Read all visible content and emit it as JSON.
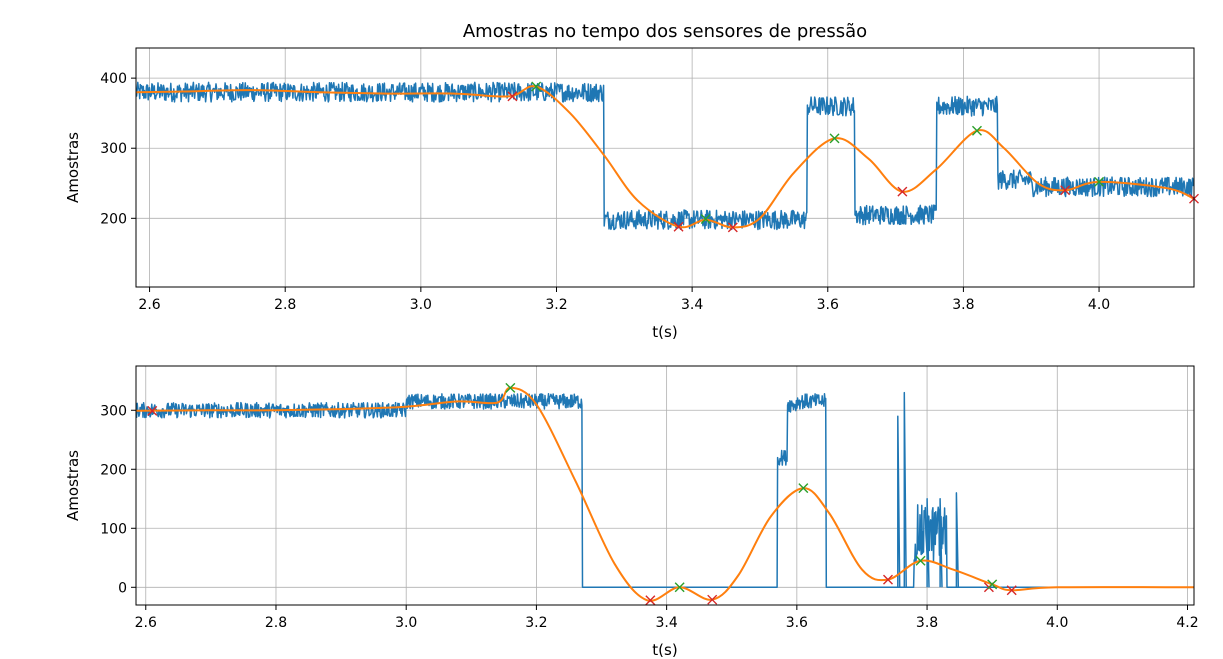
{
  "figure_title": "Amostras no tempo dos sensores de pressão",
  "colors": {
    "raw": "#1f77b4",
    "smooth": "#ff7f0e",
    "max": "#2ca02c",
    "min": "#d62728",
    "grid": "#b0b0b0"
  },
  "chart_data": [
    {
      "type": "line",
      "title": "Amostras no tempo dos sensores de pressão",
      "xlabel": "t(s)",
      "ylabel": "Amostras",
      "xlim": [
        2.58,
        4.14
      ],
      "ylim": [
        102,
        443
      ],
      "xticks": [
        2.6,
        2.8,
        3.0,
        3.2,
        3.4,
        3.6,
        3.8,
        4.0
      ],
      "xtick_labels": [
        "2.6",
        "2.8",
        "3.0",
        "3.2",
        "3.4",
        "3.6",
        "3.8",
        "4.0"
      ],
      "yticks": [
        200,
        300,
        400
      ],
      "ytick_labels": [
        "200",
        "300",
        "400"
      ],
      "grid": true,
      "raw_levels": [
        {
          "x": [
            2.58,
            3.27
          ],
          "y": 380
        },
        {
          "x": [
            3.27,
            3.57
          ],
          "y": 198
        },
        {
          "x": [
            3.57,
            3.64
          ],
          "y": 360
        },
        {
          "x": [
            3.64,
            3.76
          ],
          "y": 205
        },
        {
          "x": [
            3.76,
            3.85
          ],
          "y": 360
        },
        {
          "x": [
            3.85,
            3.9
          ],
          "y": 255
        },
        {
          "x": [
            3.9,
            4.14
          ],
          "y": 245
        }
      ],
      "raw_noise": 14,
      "smoothed": {
        "x": [
          2.58,
          2.65,
          2.75,
          2.85,
          2.95,
          3.05,
          3.13,
          3.17,
          3.22,
          3.27,
          3.32,
          3.38,
          3.42,
          3.46,
          3.5,
          3.55,
          3.61,
          3.66,
          3.71,
          3.76,
          3.82,
          3.86,
          3.91,
          3.95,
          4.0,
          4.1,
          4.14
        ],
        "y": [
          380,
          381,
          383,
          380,
          378,
          378,
          374,
          388,
          350,
          290,
          225,
          188,
          198,
          187,
          200,
          265,
          314,
          285,
          238,
          270,
          325,
          300,
          250,
          240,
          252,
          243,
          228
        ]
      },
      "maxima": [
        [
          3.17,
          388
        ],
        [
          3.42,
          199
        ],
        [
          3.61,
          314
        ],
        [
          3.82,
          325
        ],
        [
          4.0,
          252
        ]
      ],
      "minima": [
        [
          3.135,
          374
        ],
        [
          3.38,
          188
        ],
        [
          3.46,
          187
        ],
        [
          3.71,
          238
        ],
        [
          3.95,
          240
        ],
        [
          4.14,
          228
        ]
      ]
    },
    {
      "type": "line",
      "title": "",
      "xlabel": "t(s)",
      "ylabel": "Amostras",
      "xlim": [
        2.585,
        4.21
      ],
      "ylim": [
        -30,
        375
      ],
      "xticks": [
        2.6,
        2.8,
        3.0,
        3.2,
        3.4,
        3.6,
        3.8,
        4.0,
        4.2
      ],
      "xtick_labels": [
        "2.6",
        "2.8",
        "3.0",
        "3.2",
        "3.4",
        "3.6",
        "3.8",
        "4.0",
        "4.2"
      ],
      "yticks": [
        0,
        100,
        200,
        300
      ],
      "ytick_labels": [
        "0",
        "100",
        "200",
        "300"
      ],
      "grid": true,
      "raw_levels": [
        {
          "x": [
            2.585,
            3.0
          ],
          "y": 300
        },
        {
          "x": [
            3.0,
            3.27
          ],
          "y": 315
        },
        {
          "x": [
            3.27,
            3.57
          ],
          "y": 0
        },
        {
          "x": [
            3.57,
            3.585
          ],
          "y": 220
        },
        {
          "x": [
            3.585,
            3.6
          ],
          "y": 310
        },
        {
          "x": [
            3.6,
            3.645
          ],
          "y": 315
        },
        {
          "x": [
            3.645,
            3.745
          ],
          "y": 0
        },
        {
          "x": [
            3.745,
            3.77
          ],
          "y": 0
        },
        {
          "x": [
            3.78,
            3.83
          ],
          "y": 90
        },
        {
          "x": [
            3.83,
            4.21
          ],
          "y": 0
        }
      ],
      "raw_noise": 13,
      "smoothed": {
        "x": [
          2.585,
          2.7,
          2.8,
          2.9,
          3.0,
          3.08,
          3.14,
          3.16,
          3.2,
          3.26,
          3.32,
          3.37,
          3.42,
          3.47,
          3.51,
          3.56,
          3.61,
          3.65,
          3.7,
          3.74,
          3.79,
          3.84,
          3.9,
          3.93,
          4.0,
          4.21
        ],
        "y": [
          299,
          300,
          300,
          302,
          306,
          315,
          313,
          338,
          310,
          180,
          40,
          -22,
          0,
          -21,
          20,
          120,
          168,
          125,
          30,
          13,
          45,
          30,
          5,
          -5,
          0,
          0
        ]
      },
      "maxima": [
        [
          3.16,
          338
        ],
        [
          3.42,
          0
        ],
        [
          3.61,
          168
        ],
        [
          3.79,
          45
        ],
        [
          3.9,
          5
        ]
      ],
      "minima": [
        [
          2.61,
          299
        ],
        [
          3.375,
          -22
        ],
        [
          3.47,
          -21
        ],
        [
          3.74,
          13
        ],
        [
          3.895,
          0
        ],
        [
          3.93,
          -5
        ]
      ]
    }
  ]
}
